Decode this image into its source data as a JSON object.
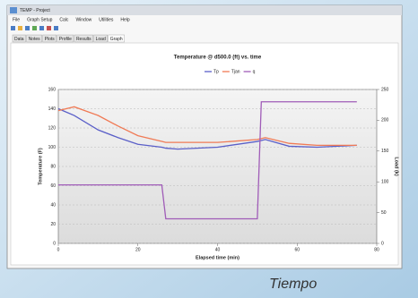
{
  "window": {
    "title": "TEMP - Project",
    "menu": [
      "File",
      "Graph Setup",
      "Calc",
      "Window",
      "Utilities",
      "Help"
    ],
    "tabs": [
      "Data",
      "Notes",
      "Plots",
      "Profile",
      "Results",
      "Load",
      "Graph"
    ]
  },
  "chart_data": {
    "type": "line",
    "title": "Temperature @ d500.0 (ft) vs. time",
    "x_label": "Elapsed time (min)",
    "y_label": "Temperature (F)",
    "y2_label": "Load (k)",
    "x": [
      0,
      4,
      10,
      15,
      20,
      26,
      27,
      30,
      40,
      50,
      51,
      52,
      58,
      65,
      75
    ],
    "series": [
      {
        "name": "Tp",
        "color": "#5a5fc8",
        "values": [
          140,
          133,
          118,
          110,
          103,
          100,
          99,
          98,
          100,
          106,
          107,
          108,
          101,
          100,
          102
        ]
      },
      {
        "name": "Tjan",
        "color": "#f07a55",
        "values": [
          138,
          142,
          133,
          122,
          112,
          106,
          105,
          105,
          105,
          108,
          109,
          110,
          104,
          102,
          102
        ]
      },
      {
        "name": "q",
        "color": "#a05cb8",
        "axis": "y2",
        "values": [
          95,
          95,
          95,
          95,
          95,
          95,
          40,
          40,
          40,
          40,
          230,
          230,
          230,
          230,
          230
        ]
      }
    ],
    "xlim": [
      0,
      80
    ],
    "xticks": [
      0,
      20,
      40,
      60,
      80
    ],
    "ylim": [
      0,
      160
    ],
    "yticks": [
      0,
      20,
      40,
      60,
      80,
      100,
      120,
      140,
      160
    ],
    "y2lim": [
      0,
      250
    ],
    "y2ticks": [
      0,
      50,
      100,
      150,
      200,
      250
    ],
    "grid": true
  },
  "caption": "Tiempo"
}
